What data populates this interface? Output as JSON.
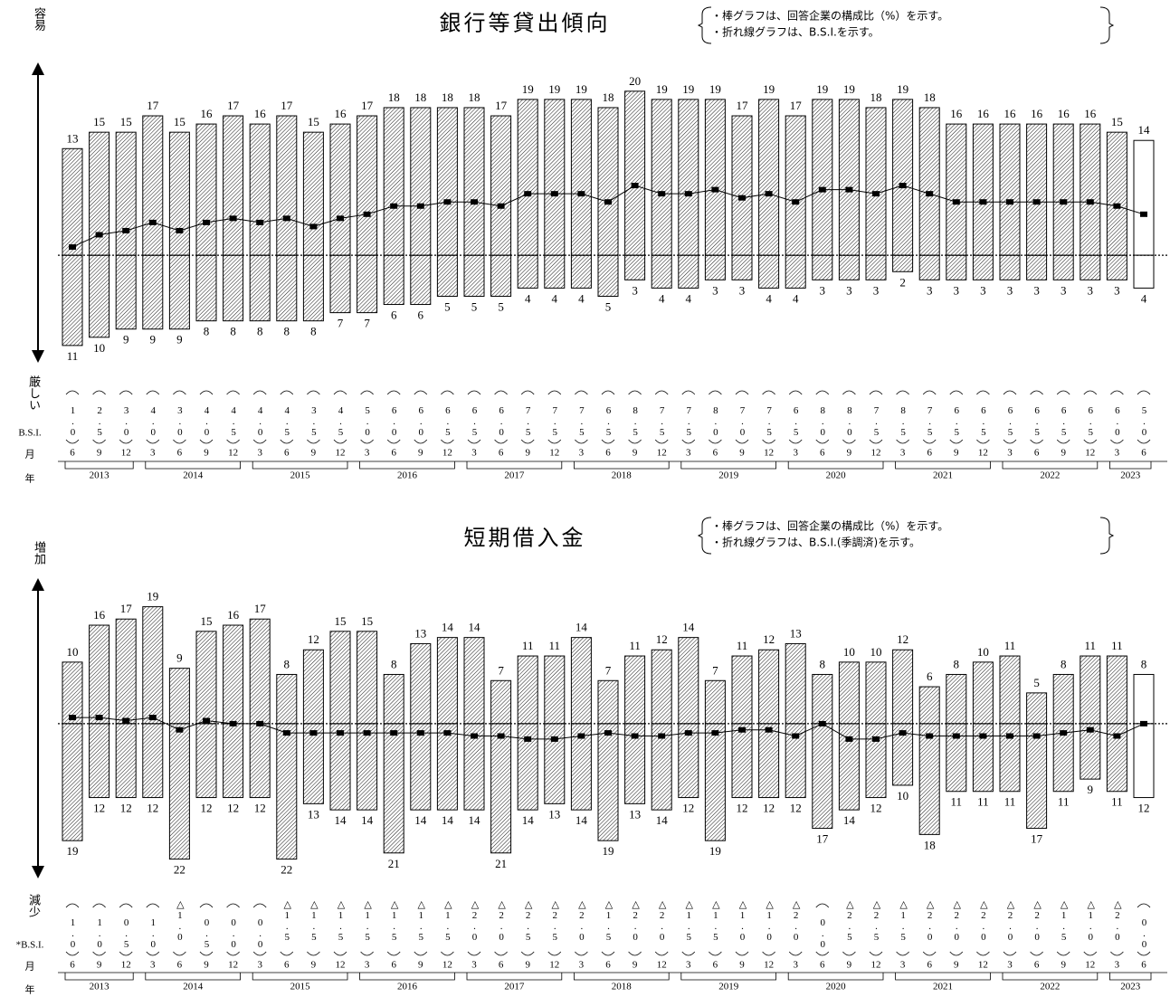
{
  "chart_data": [
    {
      "type": "bar",
      "title": "銀行等貸出傾向",
      "notes": [
        "・棒グラフは、回答企業の構成比（%）を示す。",
        "・折れ線グラフは、B.S.I.を示す。"
      ],
      "axis_top_label": "容易",
      "axis_bottom_label": "厳しい",
      "row_labels": [
        "B.S.I.",
        "月",
        "年"
      ],
      "categories": [
        "6",
        "9",
        "12",
        "3",
        "6",
        "9",
        "12",
        "3",
        "6",
        "9",
        "12",
        "3",
        "6",
        "9",
        "12",
        "3",
        "6",
        "9",
        "12",
        "3",
        "6",
        "9",
        "12",
        "3",
        "6",
        "9",
        "12",
        "3",
        "6",
        "9",
        "12",
        "3",
        "6",
        "9",
        "12",
        "3",
        "6",
        "9",
        "12",
        "3",
        "6"
      ],
      "years": [
        "2013",
        "2014",
        "2015",
        "2016",
        "2017",
        "2018",
        "2019",
        "2020",
        "2021",
        "2022",
        "2023"
      ],
      "ylim": [
        -13,
        23.4
      ],
      "hatch": true,
      "last_bar_fill": "#ffffff",
      "series": [
        {
          "color": "#000000",
          "values": [
            13,
            15,
            15,
            17,
            15,
            16,
            17,
            16,
            17,
            15,
            16,
            17,
            18,
            18,
            18,
            18,
            17,
            19,
            19,
            19,
            18,
            20,
            19,
            19,
            19,
            17,
            19,
            17,
            19,
            19,
            18,
            19,
            18,
            16,
            16,
            16,
            16,
            16,
            16,
            15,
            14
          ]
        },
        {
          "color": "#000000",
          "direction": "down",
          "values": [
            11,
            10,
            9,
            9,
            9,
            8,
            8,
            8,
            8,
            8,
            7,
            7,
            6,
            6,
            5,
            5,
            5,
            4,
            4,
            4,
            5,
            3,
            4,
            4,
            3,
            3,
            4,
            4,
            3,
            3,
            3,
            2,
            3,
            3,
            3,
            3,
            3,
            3,
            3,
            3,
            4
          ]
        },
        {
          "type": "line",
          "color": "#000000",
          "values": [
            1.0,
            2.5,
            3.0,
            4.0,
            3.0,
            4.0,
            4.5,
            4.0,
            4.5,
            3.5,
            4.5,
            5.0,
            6.0,
            6.0,
            6.5,
            6.5,
            6.0,
            7.5,
            7.5,
            7.5,
            6.5,
            8.5,
            7.5,
            7.5,
            8.0,
            7.0,
            7.5,
            6.5,
            8.0,
            8.0,
            7.5,
            8.5,
            7.5,
            6.5,
            6.5,
            6.5,
            6.5,
            6.5,
            6.5,
            6.0,
            5.0
          ],
          "value_labels": [
            "1.0",
            "2.5",
            "3.0",
            "4.0",
            "3.0",
            "4.0",
            "4.5",
            "4.0",
            "4.5",
            "3.5",
            "4.5",
            "5.0",
            "6.0",
            "6.0",
            "6.5",
            "6.5",
            "6.0",
            "7.5",
            "7.5",
            "7.5",
            "6.5",
            "8.5",
            "7.5",
            "7.5",
            "8.0",
            "7.0",
            "7.5",
            "6.5",
            "8.0",
            "8.0",
            "7.5",
            "8.5",
            "7.5",
            "6.5",
            "6.5",
            "6.5",
            "6.5",
            "6.5",
            "6.5",
            "6.0",
            "5.0"
          ]
        }
      ]
    },
    {
      "type": "bar",
      "title": "短期借入金",
      "notes": [
        "・棒グラフは、回答企業の構成比（%）を示す。",
        "・折れ線グラフは、B.S.I.(季調済)を示す。"
      ],
      "axis_top_label": "増加",
      "axis_bottom_label": "減少",
      "row_labels": [
        "*B.S.I.",
        "月",
        "年"
      ],
      "categories": [
        "6",
        "9",
        "12",
        "3",
        "6",
        "9",
        "12",
        "3",
        "6",
        "9",
        "12",
        "3",
        "6",
        "9",
        "12",
        "3",
        "6",
        "9",
        "12",
        "3",
        "6",
        "9",
        "12",
        "3",
        "6",
        "9",
        "12",
        "3",
        "6",
        "9",
        "12",
        "3",
        "6",
        "9",
        "12",
        "3",
        "6",
        "9",
        "12",
        "3",
        "6"
      ],
      "years": [
        "2013",
        "2014",
        "2015",
        "2016",
        "2017",
        "2018",
        "2019",
        "2020",
        "2021",
        "2022",
        "2023"
      ],
      "ylim": [
        -25,
        23.5
      ],
      "hatch": true,
      "last_bar_fill": "#ffffff",
      "series": [
        {
          "color": "#000000",
          "values": [
            10,
            16,
            17,
            19,
            9,
            15,
            16,
            17,
            8,
            12,
            15,
            15,
            8,
            13,
            14,
            14,
            7,
            11,
            11,
            14,
            7,
            11,
            12,
            14,
            7,
            11,
            12,
            13,
            8,
            10,
            10,
            12,
            6,
            8,
            10,
            11,
            5,
            8,
            11,
            11,
            8
          ]
        },
        {
          "color": "#000000",
          "direction": "down",
          "values": [
            19,
            12,
            12,
            12,
            22,
            12,
            12,
            12,
            22,
            13,
            14,
            14,
            21,
            14,
            14,
            14,
            21,
            14,
            13,
            14,
            19,
            13,
            14,
            12,
            19,
            12,
            12,
            12,
            17,
            14,
            12,
            10,
            18,
            11,
            11,
            11,
            17,
            11,
            9,
            11,
            12
          ]
        },
        {
          "type": "line",
          "color": "#000000",
          "values": [
            1.0,
            1.0,
            0.5,
            1.0,
            -1.0,
            0.5,
            0.0,
            0.0,
            -1.5,
            -1.5,
            -1.5,
            -1.5,
            -1.5,
            -1.5,
            -1.5,
            -2.0,
            -2.0,
            -2.5,
            -2.5,
            -2.0,
            -1.5,
            -2.0,
            -2.0,
            -1.5,
            -1.5,
            -1.0,
            -1.0,
            -2.0,
            0.0,
            -2.5,
            -2.5,
            -1.5,
            -2.0,
            -2.0,
            -2.0,
            -2.0,
            -2.0,
            -1.5,
            -1.0,
            -2.0,
            0.0
          ],
          "value_labels": [
            "1.0",
            "1.0",
            "0.5",
            "1.0",
            "△1.0",
            "0.5",
            "0.0",
            "0.0",
            "△1.5",
            "△1.5",
            "△1.5",
            "△1.5",
            "△1.5",
            "△1.5",
            "△1.5",
            "△2.0",
            "△2.0",
            "△2.5",
            "△2.5",
            "△2.0",
            "△1.5",
            "△2.0",
            "△2.0",
            "△1.5",
            "△1.5",
            "△1.0",
            "△1.0",
            "△2.0",
            "0.0",
            "△2.5",
            "△2.5",
            "△1.5",
            "△2.0",
            "△2.0",
            "△2.0",
            "△2.0",
            "△2.0",
            "△1.5",
            "△1.0",
            "△2.0",
            "0.0"
          ]
        }
      ]
    }
  ]
}
